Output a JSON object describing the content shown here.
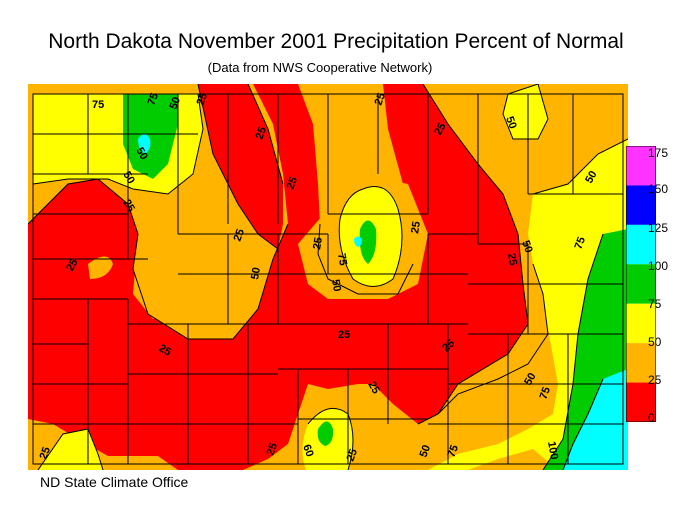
{
  "title": "North Dakota November 2001 Precipitation Percent of Normal",
  "subtitle": "(Data from NWS Cooperative Network)",
  "credit": "ND State Climate Office",
  "legend": {
    "labels": [
      "175",
      "150",
      "125",
      "100",
      "75",
      "50",
      "25",
      "0"
    ],
    "classes": [
      {
        "range": "150-175",
        "color": "#ff33ff"
      },
      {
        "range": "125-150",
        "color": "#0000ff"
      },
      {
        "range": "100-125",
        "color": "#00ffff"
      },
      {
        "range": "75-100",
        "color": "#00cc00"
      },
      {
        "range": "50-75",
        "color": "#ffff00"
      },
      {
        "range": "25-50",
        "color": "#ffb400"
      },
      {
        "range": "0-25",
        "color": "#ff0000"
      }
    ]
  },
  "contour_labels": [
    "75",
    "75",
    "50",
    "25",
    "50",
    "25",
    "25",
    "25",
    "25",
    "25",
    "25",
    "25",
    "75",
    "50",
    "50",
    "25",
    "75",
    "25",
    "25",
    "25",
    "50",
    "50",
    "25",
    "50",
    "75",
    "100",
    "25",
    "25",
    "25",
    "60",
    "25",
    "50",
    "75",
    "50",
    "25",
    "50"
  ]
}
